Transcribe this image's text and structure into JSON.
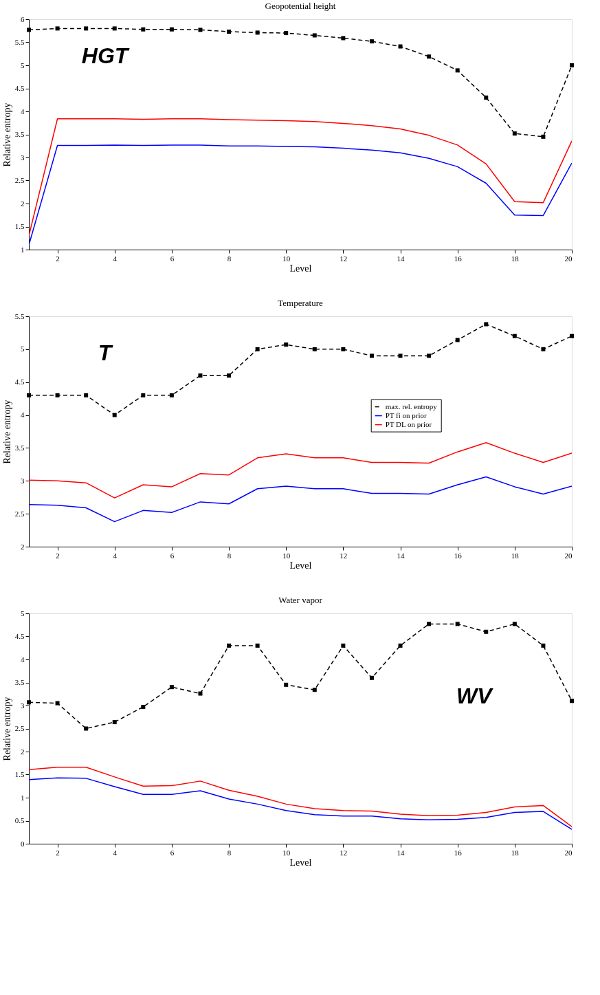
{
  "chart_data": [
    {
      "type": "line",
      "title": "Geopotential height",
      "xlabel": "Level",
      "ylabel": "Relative entropy",
      "annotations": [
        "HGT"
      ],
      "x": [
        1,
        2,
        3,
        4,
        5,
        6,
        7,
        8,
        9,
        10,
        11,
        12,
        13,
        14,
        15,
        16,
        17,
        18,
        19,
        20
      ],
      "xlim": [
        1,
        20
      ],
      "xticks": [
        2,
        4,
        6,
        8,
        10,
        12,
        14,
        16,
        18,
        20
      ],
      "ylim": [
        1,
        6
      ],
      "yticks": [
        1,
        1.5,
        2,
        2.5,
        3,
        3.5,
        4,
        4.5,
        5,
        5.5,
        6
      ],
      "grid": false,
      "legend": false,
      "series": [
        {
          "color": "#000000",
          "marker": "square",
          "line_style": "dashed",
          "values": [
            5.77,
            5.8,
            5.8,
            5.8,
            5.78,
            5.78,
            5.77,
            5.73,
            5.71,
            5.7,
            5.65,
            5.59,
            5.52,
            5.41,
            5.19,
            4.89,
            4.3,
            3.52,
            3.45,
            5.0
          ]
        },
        {
          "color": "#0000ff",
          "marker": "none",
          "line_style": "solid",
          "values": [
            1.1,
            3.26,
            3.26,
            3.27,
            3.26,
            3.27,
            3.27,
            3.25,
            3.25,
            3.24,
            3.23,
            3.2,
            3.16,
            3.1,
            2.98,
            2.8,
            2.44,
            1.75,
            1.74,
            2.88
          ]
        },
        {
          "color": "#ff0000",
          "marker": "none",
          "line_style": "solid",
          "values": [
            1.3,
            3.84,
            3.84,
            3.84,
            3.83,
            3.84,
            3.84,
            3.82,
            3.81,
            3.8,
            3.78,
            3.74,
            3.69,
            3.62,
            3.48,
            3.27,
            2.86,
            2.04,
            2.02,
            3.36
          ]
        }
      ]
    },
    {
      "type": "line",
      "title": "Temperature",
      "xlabel": "Level",
      "ylabel": "Relative entropy",
      "annotations": [
        "T"
      ],
      "x": [
        1,
        2,
        3,
        4,
        5,
        6,
        7,
        8,
        9,
        10,
        11,
        12,
        13,
        14,
        15,
        16,
        17,
        18,
        19,
        20
      ],
      "xlim": [
        1,
        20
      ],
      "xticks": [
        2,
        4,
        6,
        8,
        10,
        12,
        14,
        16,
        18,
        20
      ],
      "ylim": [
        2,
        5.5
      ],
      "yticks": [
        2,
        2.5,
        3,
        3.5,
        4,
        4.5,
        5,
        5.5
      ],
      "grid": false,
      "legend": "right",
      "series": [
        {
          "name": "max. rel. entropy",
          "color": "#000000",
          "marker": "square",
          "line_style": "dashed",
          "values": [
            4.3,
            4.3,
            4.3,
            4.0,
            4.3,
            4.3,
            4.6,
            4.6,
            5.0,
            5.07,
            5.0,
            5.0,
            4.9,
            4.9,
            4.9,
            5.14,
            5.38,
            5.2,
            5.0,
            5.2
          ]
        },
        {
          "name": "PT fi on prior",
          "color": "#0000ff",
          "marker": "none",
          "line_style": "solid",
          "values": [
            2.64,
            2.63,
            2.59,
            2.38,
            2.55,
            2.52,
            2.68,
            2.65,
            2.88,
            2.92,
            2.88,
            2.88,
            2.81,
            2.81,
            2.8,
            2.94,
            3.06,
            2.91,
            2.8,
            2.92
          ]
        },
        {
          "name": "PT DL on prior",
          "color": "#ff0000",
          "marker": "none",
          "line_style": "solid",
          "values": [
            3.01,
            3.0,
            2.97,
            2.74,
            2.94,
            2.91,
            3.11,
            3.09,
            3.35,
            3.41,
            3.35,
            3.35,
            3.28,
            3.28,
            3.27,
            3.44,
            3.58,
            3.42,
            3.28,
            3.42
          ]
        }
      ]
    },
    {
      "type": "line",
      "title": "Water vapor",
      "xlabel": "Level",
      "ylabel": "Relative entropy",
      "annotations": [
        "WV"
      ],
      "x": [
        1,
        2,
        3,
        4,
        5,
        6,
        7,
        8,
        9,
        10,
        11,
        12,
        13,
        14,
        15,
        16,
        17,
        18,
        19,
        20
      ],
      "xlim": [
        1,
        20
      ],
      "xticks": [
        2,
        4,
        6,
        8,
        10,
        12,
        14,
        16,
        18,
        20
      ],
      "ylim": [
        0,
        5
      ],
      "yticks": [
        0,
        0.5,
        1,
        1.5,
        2,
        2.5,
        3,
        3.5,
        4,
        4.5,
        5
      ],
      "grid": false,
      "legend": false,
      "series": [
        {
          "color": "#000000",
          "marker": "square",
          "line_style": "dashed",
          "values": [
            3.07,
            3.05,
            2.5,
            2.64,
            2.97,
            3.4,
            3.26,
            4.3,
            4.3,
            3.45,
            3.34,
            4.3,
            3.6,
            4.3,
            4.77,
            4.77,
            4.6,
            4.77,
            4.3,
            3.1
          ]
        },
        {
          "color": "#0000ff",
          "marker": "none",
          "line_style": "solid",
          "values": [
            1.39,
            1.43,
            1.42,
            1.24,
            1.07,
            1.07,
            1.15,
            0.97,
            0.86,
            0.72,
            0.63,
            0.6,
            0.6,
            0.54,
            0.52,
            0.53,
            0.57,
            0.68,
            0.7,
            0.31
          ]
        },
        {
          "color": "#ff0000",
          "marker": "none",
          "line_style": "solid",
          "values": [
            1.61,
            1.66,
            1.66,
            1.45,
            1.25,
            1.26,
            1.36,
            1.16,
            1.03,
            0.86,
            0.76,
            0.72,
            0.71,
            0.64,
            0.61,
            0.62,
            0.68,
            0.8,
            0.83,
            0.37
          ]
        }
      ]
    }
  ]
}
